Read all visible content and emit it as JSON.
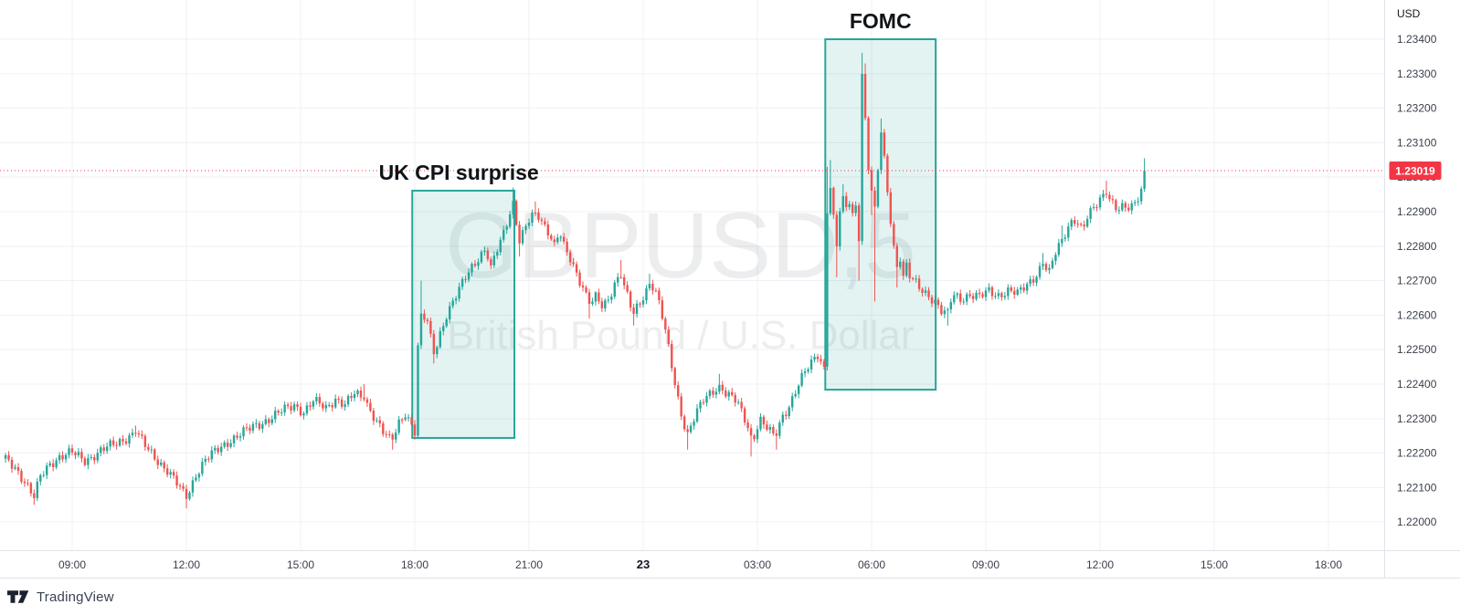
{
  "chart_data": {
    "type": "candlestick",
    "symbol": "GBPUSD",
    "interval": "5",
    "title": "British Pound / U.S. Dollar",
    "watermark": {
      "symbol": "GBPUSD,5",
      "title": "British Pound / U.S. Dollar"
    },
    "last_price": 1.23019,
    "price_line": {
      "price": 1.23019,
      "label": "1.23019"
    },
    "y_axis": {
      "currency": "USD",
      "ticks": [
        {
          "price": 1.234,
          "label": "1.23400"
        },
        {
          "price": 1.233,
          "label": "1.23300"
        },
        {
          "price": 1.232,
          "label": "1.23200"
        },
        {
          "price": 1.231,
          "label": "1.23100"
        },
        {
          "price": 1.23,
          "label": "1.23000"
        },
        {
          "price": 1.229,
          "label": "1.22900"
        },
        {
          "price": 1.228,
          "label": "1.22800"
        },
        {
          "price": 1.227,
          "label": "1.22700"
        },
        {
          "price": 1.226,
          "label": "1.22600"
        },
        {
          "price": 1.225,
          "label": "1.22500"
        },
        {
          "price": 1.224,
          "label": "1.22400"
        },
        {
          "price": 1.223,
          "label": "1.22300"
        },
        {
          "price": 1.222,
          "label": "1.22200"
        },
        {
          "price": 1.221,
          "label": "1.22100"
        },
        {
          "price": 1.22,
          "label": "1.22000"
        }
      ]
    },
    "x_axis": {
      "ticks": [
        {
          "m": 540,
          "label": "09:00"
        },
        {
          "m": 720,
          "label": "12:00"
        },
        {
          "m": 900,
          "label": "15:00"
        },
        {
          "m": 1080,
          "label": "18:00"
        },
        {
          "m": 1260,
          "label": "21:00"
        },
        {
          "m": 1440,
          "label": "23",
          "bold": true
        },
        {
          "m": 1620,
          "label": "03:00"
        },
        {
          "m": 1800,
          "label": "06:00"
        },
        {
          "m": 1980,
          "label": "09:00"
        },
        {
          "m": 2160,
          "label": "12:00"
        },
        {
          "m": 2340,
          "label": "15:00"
        },
        {
          "m": 2520,
          "label": "18:00"
        }
      ]
    },
    "annotations": [
      {
        "label": "UK CPI surprise",
        "m_start": 1076,
        "m_end": 1237,
        "price_top": 1.22961,
        "price_bottom": 1.22244
      },
      {
        "label": "FOMC",
        "m_start": 1727,
        "m_end": 1901,
        "price_top": 1.234,
        "price_bottom": 1.22384
      }
    ],
    "series": {
      "start_minute": 435,
      "end_minute": 2230,
      "step_minutes": 5,
      "waypoints": [
        [
          435,
          1.2218
        ],
        [
          450,
          1.2216
        ],
        [
          465,
          1.2212
        ],
        [
          480,
          1.2207,
          null,
          1.2205
        ],
        [
          490,
          1.2213
        ],
        [
          505,
          1.2217
        ],
        [
          520,
          1.2219
        ],
        [
          540,
          1.222
        ],
        [
          560,
          1.2218
        ],
        [
          580,
          1.222
        ],
        [
          600,
          1.2222
        ],
        [
          620,
          1.2224
        ],
        [
          640,
          1.2226,
          1.2228
        ],
        [
          655,
          1.2222
        ],
        [
          670,
          1.2219
        ],
        [
          690,
          1.2215
        ],
        [
          705,
          1.2211
        ],
        [
          720,
          1.2207,
          null,
          1.2204
        ],
        [
          735,
          1.2214
        ],
        [
          750,
          1.2218
        ],
        [
          770,
          1.2221
        ],
        [
          790,
          1.2224
        ],
        [
          810,
          1.2226
        ],
        [
          830,
          1.2228
        ],
        [
          850,
          1.223
        ],
        [
          870,
          1.2232
        ],
        [
          890,
          1.2234
        ],
        [
          905,
          1.2232
        ],
        [
          920,
          1.2235
        ],
        [
          940,
          1.2233
        ],
        [
          955,
          1.2236
        ],
        [
          970,
          1.2234
        ],
        [
          985,
          1.2237
        ],
        [
          1000,
          1.2236,
          1.224
        ],
        [
          1015,
          1.2231
        ],
        [
          1030,
          1.2226
        ],
        [
          1043,
          1.2223,
          null,
          1.2221
        ],
        [
          1055,
          1.2229
        ],
        [
          1065,
          1.2232
        ],
        [
          1073,
          1.2229
        ],
        [
          1080,
          1.2226
        ],
        [
          1085,
          1.2251,
          null,
          1.2226
        ],
        [
          1090,
          1.226,
          1.227
        ],
        [
          1100,
          1.2258
        ],
        [
          1110,
          1.2249,
          null,
          1.2246
        ],
        [
          1120,
          1.2255
        ],
        [
          1130,
          1.226
        ],
        [
          1142,
          1.2264
        ],
        [
          1152,
          1.2268
        ],
        [
          1162,
          1.2272
        ],
        [
          1172,
          1.2275
        ],
        [
          1182,
          1.2277
        ],
        [
          1192,
          1.2279
        ],
        [
          1200,
          1.2273
        ],
        [
          1208,
          1.2278
        ],
        [
          1218,
          1.2283
        ],
        [
          1228,
          1.2289
        ],
        [
          1235,
          1.2293,
          1.2297
        ],
        [
          1245,
          1.2281,
          null,
          1.2277
        ],
        [
          1252,
          1.2284
        ],
        [
          1262,
          1.2288
        ],
        [
          1272,
          1.229,
          1.2293
        ],
        [
          1282,
          1.2287
        ],
        [
          1292,
          1.2284
        ],
        [
          1300,
          1.228
        ],
        [
          1308,
          1.2284
        ],
        [
          1316,
          1.2279
        ],
        [
          1326,
          1.2276
        ],
        [
          1336,
          1.2272
        ],
        [
          1346,
          1.2268
        ],
        [
          1356,
          1.2263,
          null,
          1.2259
        ],
        [
          1366,
          1.2265
        ],
        [
          1376,
          1.2262
        ],
        [
          1386,
          1.2265
        ],
        [
          1396,
          1.227
        ],
        [
          1404,
          1.2272,
          1.2276
        ],
        [
          1414,
          1.2266
        ],
        [
          1424,
          1.226,
          null,
          1.2257
        ],
        [
          1434,
          1.2263
        ],
        [
          1444,
          1.2267
        ],
        [
          1452,
          1.227,
          1.2272
        ],
        [
          1462,
          1.2266
        ],
        [
          1472,
          1.2258
        ],
        [
          1482,
          1.2248
        ],
        [
          1492,
          1.2238
        ],
        [
          1502,
          1.223
        ],
        [
          1510,
          1.2226,
          null,
          1.2221
        ],
        [
          1522,
          1.2231
        ],
        [
          1535,
          1.2235
        ],
        [
          1550,
          1.2238
        ],
        [
          1562,
          1.224,
          1.2243
        ],
        [
          1572,
          1.2237
        ],
        [
          1582,
          1.2236
        ],
        [
          1592,
          1.2233
        ],
        [
          1602,
          1.2229
        ],
        [
          1612,
          1.2224,
          null,
          1.2219
        ],
        [
          1624,
          1.223
        ],
        [
          1636,
          1.2227
        ],
        [
          1648,
          1.2224,
          null,
          1.2221
        ],
        [
          1658,
          1.223
        ],
        [
          1670,
          1.2234
        ],
        [
          1682,
          1.2239
        ],
        [
          1694,
          1.2243
        ],
        [
          1706,
          1.2246
        ],
        [
          1714,
          1.2249
        ],
        [
          1722,
          1.2246
        ],
        [
          1725,
          1.2245
        ],
        [
          1730,
          1.229,
          1.2303,
          1.2244
        ],
        [
          1735,
          1.2297,
          1.2305
        ],
        [
          1740,
          1.2288
        ],
        [
          1745,
          1.228,
          null,
          1.2271
        ],
        [
          1750,
          1.229
        ],
        [
          1755,
          1.2294,
          1.2298
        ],
        [
          1760,
          1.2291
        ],
        [
          1765,
          1.2293
        ],
        [
          1770,
          1.2289
        ],
        [
          1775,
          1.2292
        ],
        [
          1780,
          1.2282,
          null,
          1.227
        ],
        [
          1785,
          1.233,
          1.2336,
          1.2281
        ],
        [
          1790,
          1.2317,
          1.2333
        ],
        [
          1795,
          1.2303
        ],
        [
          1800,
          1.2296,
          null,
          1.2289
        ],
        [
          1805,
          1.2291,
          null,
          1.2264
        ],
        [
          1810,
          1.2302
        ],
        [
          1815,
          1.2313,
          1.2317
        ],
        [
          1820,
          1.2305
        ],
        [
          1825,
          1.2296
        ],
        [
          1830,
          1.2288
        ],
        [
          1835,
          1.228
        ],
        [
          1840,
          1.2274,
          null,
          1.2268
        ],
        [
          1845,
          1.2277
        ],
        [
          1850,
          1.2271
        ],
        [
          1855,
          1.2274
        ],
        [
          1860,
          1.2271
        ],
        [
          1875,
          1.2268
        ],
        [
          1890,
          1.2266
        ],
        [
          1900,
          1.2264
        ],
        [
          1910,
          1.2261
        ],
        [
          1918,
          1.226,
          null,
          1.2257
        ],
        [
          1928,
          1.2266
        ],
        [
          1940,
          1.2265
        ],
        [
          1955,
          1.2266
        ],
        [
          1970,
          1.2265
        ],
        [
          1985,
          1.2267
        ],
        [
          2000,
          1.2266
        ],
        [
          2015,
          1.2267
        ],
        [
          2030,
          1.2266
        ],
        [
          2045,
          1.2269
        ],
        [
          2060,
          1.2272
        ],
        [
          2070,
          1.2275,
          1.2278
        ],
        [
          2080,
          1.2272
        ],
        [
          2090,
          1.2278
        ],
        [
          2100,
          1.2282,
          1.2286
        ],
        [
          2112,
          1.2287
        ],
        [
          2122,
          1.2288
        ],
        [
          2132,
          1.2284
        ],
        [
          2140,
          1.2288
        ],
        [
          2150,
          1.2291
        ],
        [
          2160,
          1.2294
        ],
        [
          2168,
          1.2296,
          1.2299
        ],
        [
          2178,
          1.2293
        ],
        [
          2188,
          1.229
        ],
        [
          2198,
          1.2291
        ],
        [
          2208,
          1.2291
        ],
        [
          2218,
          1.2294
        ],
        [
          2226,
          1.2297
        ],
        [
          2230,
          1.23019,
          1.23055
        ]
      ]
    },
    "colors": {
      "up": "#26A69A",
      "down": "#EF5350",
      "box_fill": "rgba(38,166,154,0.13)",
      "box_border": "#26A69A",
      "price_line": "#F23645",
      "price_badge": "#F23645",
      "grid": "#EFF1F4",
      "axis_border": "#E0E3EB",
      "axis_text": "#3A3E4B",
      "axis_text_strong": "#131722",
      "watermark": "#131722",
      "annotation_text": "#101418"
    }
  },
  "footer": {
    "brand": "TradingView"
  }
}
